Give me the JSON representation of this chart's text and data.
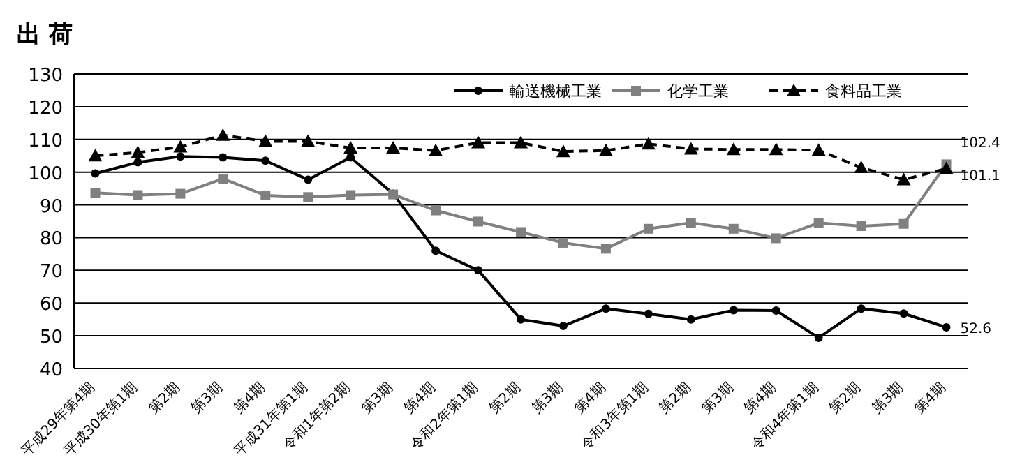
{
  "chart_data": {
    "type": "line",
    "title": "出 荷",
    "categories": [
      "平成29年第4期",
      "平成30年第1期",
      "第2期",
      "第3期",
      "第4期",
      "平成31年第1期",
      "令和1年第2期",
      "第3期",
      "第4期",
      "令和2年第1期",
      "第2期",
      "第3期",
      "第4期",
      "令和3年第1期",
      "第2期",
      "第3期",
      "第4期",
      "令和4年第1期",
      "第2期",
      "第3期",
      "第4期"
    ],
    "series": [
      {
        "name": "輸送機械工業",
        "color": "#000000",
        "marker": "circle",
        "line_style": "solid",
        "values": [
          99.6,
          103,
          104.8,
          104.5,
          103.5,
          97.7,
          104.5,
          93.4,
          76,
          70,
          55,
          53,
          58.3,
          56.7,
          55,
          57.8,
          57.7,
          49.4,
          58.3,
          56.8,
          52.6
        ],
        "value_labels": [
          null,
          null,
          null,
          null,
          null,
          null,
          null,
          null,
          null,
          null,
          null,
          null,
          null,
          null,
          null,
          null,
          null,
          null,
          null,
          null,
          "52.6"
        ]
      },
      {
        "name": "化学工業",
        "color": "#808080",
        "marker": "square",
        "line_style": "solid",
        "values": [
          93.7,
          93,
          93.4,
          98,
          92.9,
          92.4,
          93,
          93.2,
          88.3,
          84.9,
          81.7,
          78.4,
          76.6,
          82.7,
          84.5,
          82.7,
          79.8,
          84.5,
          83.5,
          84.2,
          102.4
        ],
        "value_labels": [
          null,
          null,
          null,
          null,
          null,
          null,
          null,
          null,
          null,
          null,
          null,
          null,
          null,
          null,
          null,
          null,
          null,
          null,
          null,
          null,
          "102.4"
        ]
      },
      {
        "name": "食料品工業",
        "color": "#000000",
        "marker": "triangle",
        "line_style": "dashed",
        "values": [
          105,
          106,
          107.7,
          111.3,
          109.4,
          109.4,
          107.4,
          107.4,
          106.6,
          109,
          109,
          106.3,
          106.6,
          108.6,
          107.1,
          106.9,
          106.9,
          106.7,
          101.4,
          97.7,
          101.1
        ],
        "value_labels": [
          null,
          null,
          null,
          null,
          null,
          null,
          null,
          null,
          null,
          null,
          null,
          null,
          null,
          null,
          null,
          null,
          null,
          null,
          null,
          null,
          "101.1"
        ]
      }
    ],
    "ylim": [
      40,
      130
    ],
    "yticks": [
      40,
      50,
      60,
      70,
      80,
      90,
      100,
      110,
      120,
      130
    ],
    "grid": "y",
    "legend": "top right"
  }
}
